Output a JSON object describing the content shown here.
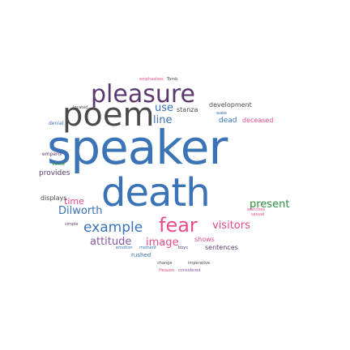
{
  "word_cloud": {
    "words": [
      {
        "text": "speaker",
        "color": "#3a73b6"
      },
      {
        "text": "death",
        "color": "#3a73b6"
      },
      {
        "text": "poem",
        "color": "#4a4a4a"
      },
      {
        "text": "pleasure",
        "color": "#5a3a6e"
      },
      {
        "text": "example",
        "color": "#3a73b6"
      },
      {
        "text": "fear",
        "color": "#e84a8a"
      },
      {
        "text": "line",
        "color": "#3a73b6"
      },
      {
        "text": "use",
        "color": "#3a73b6"
      },
      {
        "text": "Dilworth",
        "color": "#3a73b6"
      },
      {
        "text": "attitude",
        "color": "#8a5aa0"
      },
      {
        "text": "image",
        "color": "#e84a8a"
      },
      {
        "text": "visitors",
        "color": "#e84a8a"
      },
      {
        "text": "present",
        "color": "#2f8f3f"
      },
      {
        "text": "time",
        "color": "#e84a8a"
      },
      {
        "text": "provides",
        "color": "#5a3a6e"
      },
      {
        "text": "displays",
        "color": "#4a4a4a"
      },
      {
        "text": "stanza",
        "color": "#4a4a4a"
      },
      {
        "text": "development",
        "color": "#4a4a4a"
      },
      {
        "text": "dead",
        "color": "#3a73b6"
      },
      {
        "text": "deceased",
        "color": "#e84a8a"
      },
      {
        "text": "shows",
        "color": "#e84a8a"
      },
      {
        "text": "sentences",
        "color": "#5a3a6e"
      },
      {
        "text": "emphasizes",
        "color": "#e84a8a"
      },
      {
        "text": "Tomb",
        "color": "#4a4a4a"
      },
      {
        "text": "emperor",
        "color": "#5a3a6e"
      },
      {
        "text": "voice",
        "color": "#2f8f3f"
      },
      {
        "text": "denial",
        "color": "#3a73b6"
      },
      {
        "text": "change",
        "color": "#4a4a4a"
      },
      {
        "text": "imperative",
        "color": "#4a4a4a"
      },
      {
        "text": "Heaven",
        "color": "#e84a8a"
      },
      {
        "text": "considered",
        "color": "#8a5aa0"
      },
      {
        "text": "sexual",
        "color": "#e84a8a"
      },
      {
        "text": "wenches",
        "color": "#e84a8a"
      },
      {
        "text": "emotion",
        "color": "#3a73b6"
      },
      {
        "text": "moment",
        "color": "#3a73b6"
      },
      {
        "text": "boys",
        "color": "#5a3a6e"
      },
      {
        "text": "rushed",
        "color": "#3a73b6"
      },
      {
        "text": "simple",
        "color": "#5a3a6e"
      },
      {
        "text": "located",
        "color": "#4a4a4a"
      },
      {
        "text": "wake",
        "color": "#3a73b6"
      }
    ]
  }
}
